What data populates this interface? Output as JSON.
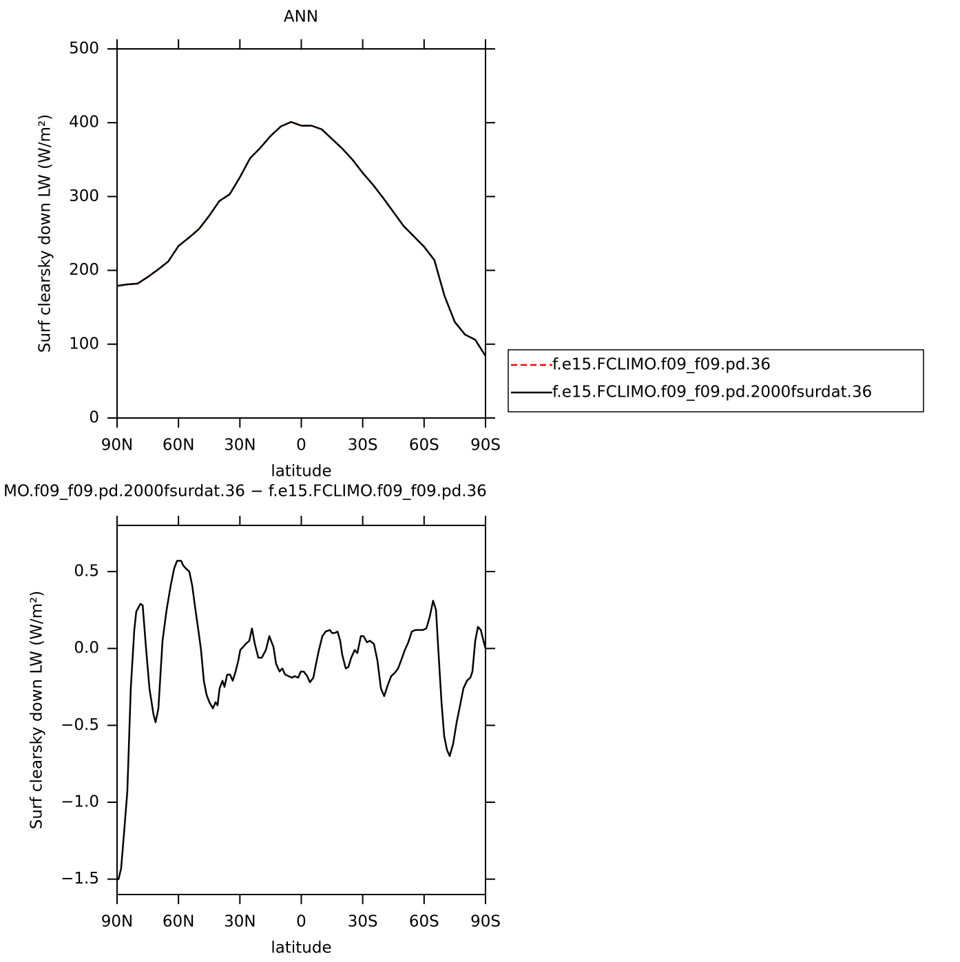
{
  "chart_data": [
    {
      "type": "line",
      "title": "ANN",
      "xlabel": "latitude",
      "ylabel": "Surf clearsky down LW (W/m²)",
      "x": [
        90,
        85,
        80,
        75,
        70,
        65,
        60,
        55,
        50,
        45,
        40,
        35,
        30,
        25,
        20,
        15,
        10,
        5,
        0,
        -5,
        -10,
        -15,
        -20,
        -25,
        -30,
        -35,
        -40,
        -45,
        -50,
        -55,
        -60,
        -65,
        -70,
        -75,
        -80,
        -85,
        -90
      ],
      "series": [
        {
          "name": "f.e15.FCLIMO.f09_f09.pd.36",
          "color": "#ff0000",
          "dashed": true,
          "values": [
            179,
            181,
            182,
            191,
            201,
            212,
            233,
            244,
            256,
            274,
            294,
            303,
            326,
            352,
            366,
            382,
            395,
            401,
            396,
            396,
            391,
            378,
            365,
            350,
            332,
            316,
            298,
            279,
            260,
            246,
            232,
            214,
            165,
            130,
            113,
            106,
            84
          ]
        },
        {
          "name": "f.e15.FCLIMO.f09_f09.pd.2000fsurdat.36",
          "color": "#000000",
          "dashed": false,
          "values": [
            179,
            181,
            182,
            191,
            201,
            212,
            233,
            244,
            256,
            274,
            294,
            303,
            326,
            352,
            366,
            382,
            395,
            401,
            396,
            396,
            391,
            378,
            365,
            350,
            332,
            316,
            298,
            279,
            260,
            246,
            232,
            214,
            165,
            130,
            113,
            106,
            84
          ]
        }
      ],
      "xlim": [
        90,
        -90
      ],
      "xticks": [
        {
          "value": 90,
          "label": "90N"
        },
        {
          "value": 60,
          "label": "60N"
        },
        {
          "value": 30,
          "label": "30N"
        },
        0,
        {
          "value": -30,
          "label": "30S"
        },
        {
          "value": -60,
          "label": "60S"
        },
        {
          "value": -90,
          "label": "90S"
        }
      ],
      "ylim": [
        0,
        500
      ],
      "yticks": [
        0,
        100,
        200,
        300,
        400,
        500
      ],
      "legend": "right"
    },
    {
      "type": "line",
      "title": "MO.f09_f09.pd.2000fsurdat.36 − f.e15.FCLIMO.f09_f09.pd.36",
      "xlabel": "latitude",
      "ylabel": "Surf clearsky down LW (W/m²)",
      "x": [
        90,
        89.3,
        88.0,
        86.6,
        85.0,
        83.3,
        81.6,
        80.6,
        78.6,
        77.5,
        75.9,
        74.2,
        72.2,
        71.2,
        69.8,
        67.8,
        65.8,
        63.8,
        62.1,
        60.7,
        58.7,
        57.7,
        56.4,
        54.7,
        53.3,
        52.0,
        50.3,
        49.0,
        47.6,
        46.3,
        44.9,
        43.2,
        41.9,
        40.9,
        39.9,
        38.5,
        37.5,
        36.2,
        34.8,
        33.5,
        32.1,
        30.8,
        29.8,
        28.4,
        27.1,
        25.4,
        24.1,
        22.7,
        21.0,
        19.3,
        17.3,
        15.6,
        13.6,
        12.3,
        10.6,
        9.3,
        7.9,
        6.2,
        4.5,
        3.2,
        1.5,
        0.2,
        -1.2,
        -2.9,
        -4.2,
        -5.9,
        -7.2,
        -8.6,
        -10.3,
        -11.9,
        -14.0,
        -15.0,
        -16.3,
        -17.7,
        -19.0,
        -20.0,
        -21.7,
        -23.0,
        -24.4,
        -26.1,
        -27.4,
        -29.1,
        -30.4,
        -32.1,
        -33.5,
        -35.5,
        -37.2,
        -38.9,
        -40.5,
        -42.2,
        -43.9,
        -45.6,
        -47.3,
        -49.0,
        -50.6,
        -52.3,
        -54.0,
        -55.7,
        -57.7,
        -59.4,
        -61.1,
        -62.8,
        -64.4,
        -65.8,
        -67.1,
        -68.5,
        -69.8,
        -71.2,
        -72.5,
        -74.2,
        -75.9,
        -77.6,
        -79.2,
        -80.9,
        -82.6,
        -83.6,
        -85.0,
        -86.3,
        -87.7,
        -89.0,
        -90
      ],
      "series": [
        {
          "color": "#000000",
          "values": [
            -1.5,
            -1.5,
            -1.43,
            -1.2,
            -0.93,
            -0.26,
            0.12,
            0.24,
            0.29,
            0.28,
            0.01,
            -0.26,
            -0.43,
            -0.48,
            -0.39,
            0.05,
            0.25,
            0.41,
            0.52,
            0.57,
            0.57,
            0.54,
            0.52,
            0.5,
            0.41,
            0.28,
            0.12,
            -0.01,
            -0.21,
            -0.3,
            -0.35,
            -0.39,
            -0.35,
            -0.37,
            -0.26,
            -0.21,
            -0.25,
            -0.17,
            -0.17,
            -0.21,
            -0.15,
            -0.08,
            -0.01,
            0.01,
            0.03,
            0.05,
            0.13,
            0.03,
            -0.06,
            -0.06,
            -0.01,
            0.08,
            0.01,
            -0.1,
            -0.15,
            -0.13,
            -0.17,
            -0.18,
            -0.19,
            -0.18,
            -0.19,
            -0.15,
            -0.15,
            -0.18,
            -0.22,
            -0.19,
            -0.1,
            -0.01,
            0.08,
            0.11,
            0.12,
            0.1,
            0.1,
            0.11,
            0.05,
            -0.04,
            -0.13,
            -0.12,
            -0.06,
            -0.01,
            -0.03,
            0.08,
            0.08,
            0.04,
            0.05,
            0.03,
            -0.08,
            -0.26,
            -0.31,
            -0.24,
            -0.18,
            -0.16,
            -0.13,
            -0.07,
            -0.01,
            0.04,
            0.11,
            0.12,
            0.12,
            0.12,
            0.13,
            0.21,
            0.31,
            0.25,
            -0.04,
            -0.35,
            -0.57,
            -0.66,
            -0.7,
            -0.62,
            -0.48,
            -0.37,
            -0.26,
            -0.21,
            -0.19,
            -0.15,
            0.05,
            0.14,
            0.12,
            0.05,
            0
          ]
        }
      ],
      "xlim": [
        90,
        -90
      ],
      "xticks": [
        {
          "value": 90,
          "label": "90N"
        },
        {
          "value": 60,
          "label": "60N"
        },
        {
          "value": 30,
          "label": "30N"
        },
        0,
        {
          "value": -30,
          "label": "30S"
        },
        {
          "value": -60,
          "label": "60S"
        },
        {
          "value": -90,
          "label": "90S"
        }
      ],
      "ylim": [
        -1.6,
        0.8
      ],
      "yticks": [
        {
          "value": -1.5,
          "label": "−1.5"
        },
        {
          "value": -1,
          "label": "−1.0"
        },
        {
          "value": -0.5,
          "label": "−0.5"
        },
        {
          "value": 0,
          "label": "0.0"
        },
        0.5
      ]
    }
  ]
}
